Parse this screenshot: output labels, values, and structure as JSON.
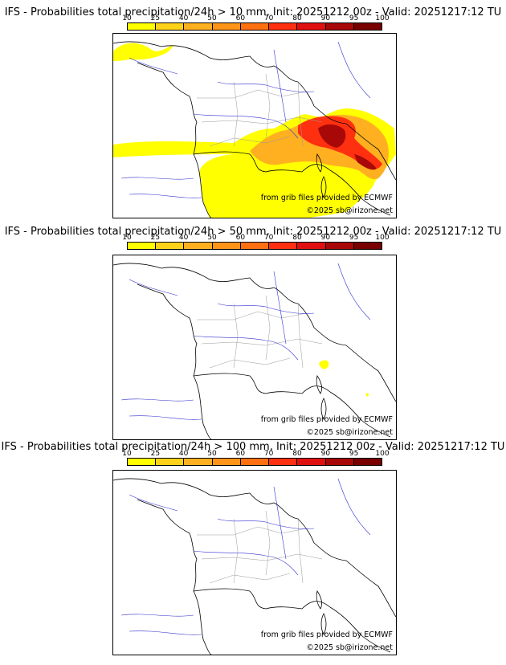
{
  "panels": [
    {
      "title": "IFS - Probabilities total precipitation/24h > 10 mm, Init: 20251212 00z - Valid: 20251217:12 TU",
      "source_credit": "from grib files provided by ECMWF",
      "copyright": "©2025 sb@irizone.net"
    },
    {
      "title": "IFS - Probabilities total precipitation/24h > 50 mm, Init: 20251212 00z - Valid: 20251217:12 TU",
      "source_credit": "from grib files provided by ECMWF",
      "copyright": "©2025 sb@irizone.net"
    },
    {
      "title": "IFS - Probabilities total precipitation/24h > 100 mm, Init: 20251212 00z - Valid: 20251217:12 TU",
      "source_credit": "from grib files provided by ECMWF",
      "copyright": "©2025 sb@irizone.net"
    }
  ],
  "legend": {
    "ticks": [
      "10",
      "25",
      "40",
      "50",
      "60",
      "70",
      "80",
      "90",
      "95",
      "100"
    ],
    "colors": [
      "#ffff00",
      "#ffd21a",
      "#ffb020",
      "#ff9418",
      "#ff7010",
      "#ff3010",
      "#e01010",
      "#a80808",
      "#780000"
    ]
  }
}
